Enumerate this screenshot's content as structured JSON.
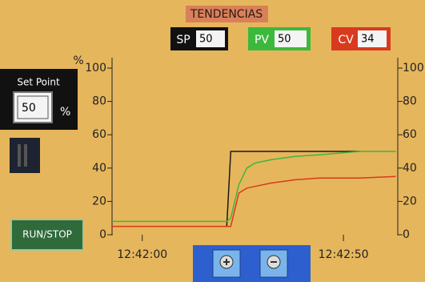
{
  "title": "TENDENCIAS",
  "indicators": [
    {
      "value": "50"
    },
    {
      "value": "50"
    },
    {
      "value": "34"
    }
  ],
  "setpoint_panel": {
    "title": "Set Point",
    "value": "50",
    "unit": "%"
  },
  "run_stop_button": "RUN/STOP",
  "chart_data": {
    "type": "line",
    "y_label": "%",
    "x": [
      -7.5,
      21,
      22,
      24,
      26,
      28,
      32,
      38,
      44,
      54,
      63
    ],
    "xlim": [
      -7.5,
      63.5
    ],
    "xticks": [
      {
        "value": 0,
        "label": "12:42:00"
      },
      {
        "value": 50,
        "label": "12:42:50"
      }
    ],
    "ylim": [
      0,
      100
    ],
    "yticks": [
      0,
      20,
      40,
      60,
      80,
      100
    ],
    "y2lim": [
      0,
      100
    ],
    "y2ticks": [
      0,
      20,
      40,
      60,
      80,
      100
    ],
    "series": [
      {
        "name": "SP",
        "color": "#1a1a1a",
        "values": [
          null,
          5,
          50,
          50,
          50,
          50,
          50,
          50,
          50,
          50,
          null
        ]
      },
      {
        "name": "PV",
        "color": "#3cb83c",
        "values": [
          8,
          8,
          10,
          30,
          40,
          43,
          45,
          47,
          48,
          50,
          50
        ]
      },
      {
        "name": "CV",
        "color": "#d83a1e",
        "values": [
          5,
          5,
          5,
          25,
          28,
          29,
          31,
          33,
          34,
          34,
          35
        ]
      }
    ]
  }
}
